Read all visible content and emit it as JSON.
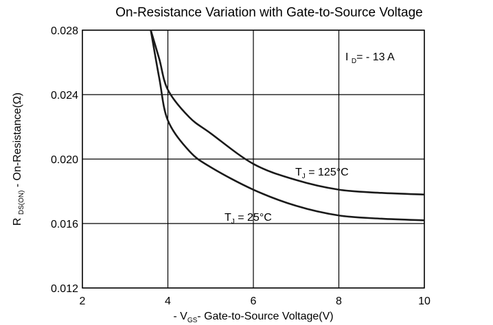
{
  "chart_data": {
    "type": "line",
    "title": "On-Resistance Variation with Gate-to-Source Voltage",
    "x_label": [
      "- V",
      "GS",
      "- Gate-to-Source Voltage(V)"
    ],
    "y_label": [
      "R ",
      "DS(ON)",
      " - On-Resistance(Ω)"
    ],
    "annotation": [
      "I ",
      "D",
      "= - 13 A"
    ],
    "x": [
      3.6,
      3.8,
      4,
      4.5,
      5,
      6,
      7,
      8,
      9,
      10
    ],
    "series": [
      {
        "label_parts": [
          "T",
          "J",
          "  = 125°C"
        ],
        "color": "#1a1a1a",
        "values": [
          0.028,
          0.0262,
          0.0243,
          0.0226,
          0.0216,
          0.0197,
          0.0187,
          0.0181,
          0.0179,
          0.0178
        ]
      },
      {
        "label_parts": [
          "T",
          "J",
          "  = 25°C"
        ],
        "color": "#1a1a1a",
        "values": [
          0.028,
          0.025,
          0.0224,
          0.0205,
          0.0195,
          0.0181,
          0.0171,
          0.0165,
          0.0163,
          0.0162
        ]
      }
    ],
    "xlim": [
      2,
      10
    ],
    "ylim": [
      0.012,
      0.028
    ],
    "xticks": [
      2,
      4,
      6,
      8,
      10
    ],
    "yticks": [
      0.012,
      0.016,
      {
        "value": 0.02,
        "label": "0.020"
      },
      0.024,
      0.028
    ],
    "grid": true
  }
}
